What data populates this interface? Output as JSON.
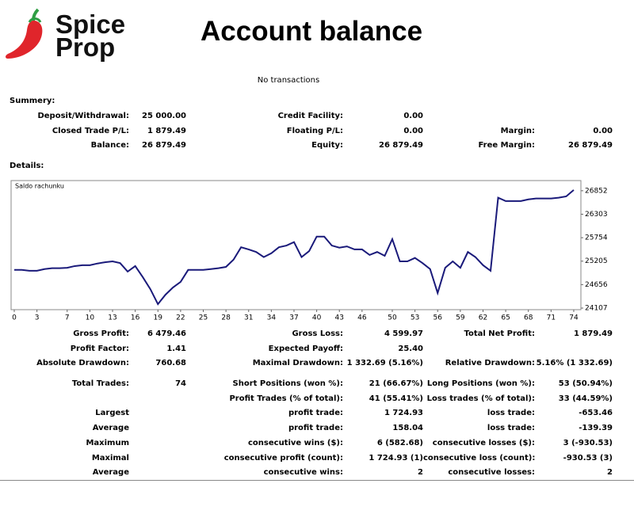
{
  "header": {
    "brand": [
      "Spice",
      "Prop"
    ],
    "title": "Account balance",
    "note": "No transactions"
  },
  "summary": {
    "label": "Summery:",
    "rows": [
      [
        "Deposit/Withdrawal:",
        "25 000.00",
        "Credit Facility:",
        "0.00",
        null,
        null
      ],
      [
        "Closed Trade P/L:",
        "1 879.49",
        "Floating P/L:",
        "0.00",
        "Margin:",
        "0.00"
      ],
      [
        "Balance:",
        "26 879.49",
        "Equity:",
        "26 879.49",
        "Free Margin:",
        "26 879.49"
      ]
    ]
  },
  "details": {
    "label": "Details:"
  },
  "chart_data": {
    "type": "line",
    "x": [
      0,
      1,
      2,
      3,
      4,
      5,
      6,
      7,
      8,
      9,
      10,
      11,
      12,
      13,
      14,
      15,
      16,
      17,
      18,
      19,
      20,
      21,
      22,
      23,
      24,
      25,
      26,
      27,
      28,
      29,
      30,
      31,
      32,
      33,
      34,
      35,
      36,
      37,
      38,
      39,
      40,
      41,
      42,
      43,
      44,
      45,
      46,
      47,
      48,
      49,
      50,
      51,
      52,
      53,
      54,
      55,
      56,
      57,
      58,
      59,
      60,
      61,
      62,
      63,
      64,
      65,
      66,
      67,
      68,
      69,
      70,
      71,
      72,
      73,
      74
    ],
    "series": [
      {
        "name": "Saldo rachunku",
        "color": "#1a1a7a",
        "values": [
          25000,
          25000,
          24980,
          24980,
          25020,
          25040,
          25040,
          25050,
          25090,
          25110,
          25110,
          25150,
          25180,
          25200,
          25160,
          24960,
          25090,
          24830,
          24550,
          24200,
          24420,
          24590,
          24720,
          25000,
          25000,
          25000,
          25020,
          25040,
          25070,
          25240,
          25530,
          25480,
          25420,
          25300,
          25390,
          25530,
          25570,
          25650,
          25300,
          25440,
          25780,
          25780,
          25570,
          25520,
          25550,
          25480,
          25480,
          25350,
          25420,
          25330,
          25720,
          25200,
          25200,
          25280,
          25160,
          25020,
          24460,
          25050,
          25200,
          25050,
          25420,
          25300,
          25110,
          24980,
          26690,
          26610,
          26610,
          26610,
          26650,
          26670,
          26670,
          26670,
          26690,
          26720,
          26870
        ]
      }
    ],
    "xlim": [
      0,
      75
    ],
    "ylim": [
      24070,
      27090
    ],
    "xticks": [
      0,
      3,
      7,
      10,
      13,
      16,
      19,
      22,
      25,
      28,
      31,
      34,
      37,
      40,
      43,
      46,
      50,
      53,
      56,
      59,
      62,
      65,
      68,
      71,
      74
    ],
    "yticks": [
      24107,
      24656,
      25205,
      25754,
      26303,
      26852
    ],
    "grid": false
  },
  "statistics": {
    "rows": [
      [
        "Gross Profit:",
        "6 479.46",
        "Gross Loss:",
        "4 599.97",
        "Total Net Profit:",
        "1 879.49"
      ],
      [
        "Profit Factor:",
        "1.41",
        "Expected Payoff:",
        "25.40",
        null,
        null
      ],
      [
        "Absolute Drawdown:",
        "760.68",
        "Maximal Drawdown:",
        "1 332.69 (5.16%)",
        "Relative Drawdown:",
        "5.16% (1 332.69)"
      ],
      [
        "Total Trades:",
        "74",
        "Short Positions (won %):",
        "21 (66.67%)",
        "Long Positions (won %):",
        "53 (50.94%)"
      ],
      [
        null,
        null,
        "Profit Trades (% of total):",
        "41 (55.41%)",
        "Loss trades (% of total):",
        "33 (44.59%)"
      ],
      [
        "Largest",
        null,
        "profit trade:",
        "1 724.93",
        "loss trade:",
        "-653.46"
      ],
      [
        "Average",
        null,
        "profit trade:",
        "158.04",
        "loss trade:",
        "-139.39"
      ],
      [
        "Maximum",
        null,
        "consecutive wins ($):",
        "6 (582.68)",
        "consecutive losses ($):",
        "3 (-930.53)"
      ],
      [
        "Maximal",
        null,
        "consecutive profit (count):",
        "1 724.93 (1)",
        "consecutive loss (count):",
        "-930.53 (3)"
      ],
      [
        "Average",
        null,
        "consecutive wins:",
        "2",
        "consecutive losses:",
        "2"
      ]
    ]
  }
}
